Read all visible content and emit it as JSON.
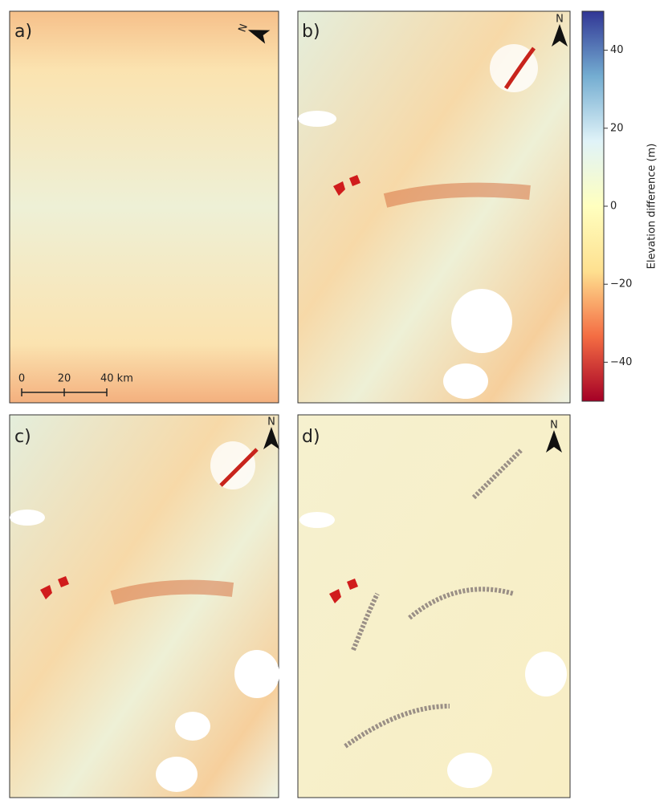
{
  "panels": [
    {
      "label": "a)"
    },
    {
      "label": "b)"
    },
    {
      "label": "c)"
    },
    {
      "label": "d)"
    }
  ],
  "north_label": "N",
  "scale_bar": {
    "labels": [
      "0",
      "20",
      "40 km"
    ]
  },
  "colorbar": {
    "label": "Elevation difference (m)",
    "lim": [
      -50,
      50
    ],
    "ticks": [
      {
        "value": -40,
        "label": "−40"
      },
      {
        "value": -20,
        "label": "−20"
      },
      0,
      20,
      40
    ],
    "colors": [
      "#a50026",
      "#f46d43",
      "#fee090",
      "#ffffbf",
      "#e0f3f8",
      "#74add1",
      "#313695"
    ]
  }
}
